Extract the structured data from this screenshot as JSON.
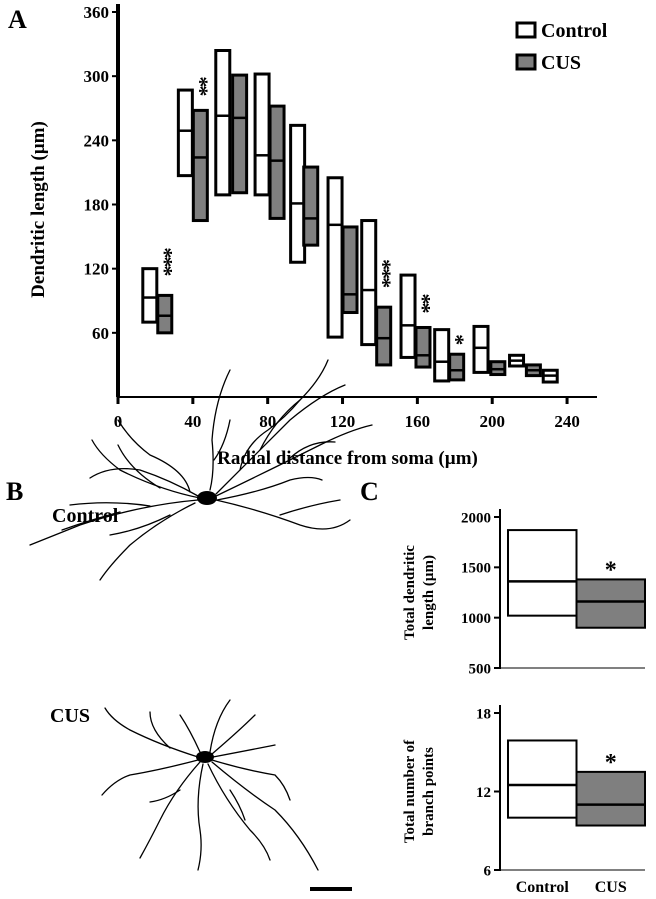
{
  "chart_data": [
    {
      "type": "box",
      "panel": "A",
      "xlabel": "Radial distance from soma (µm)",
      "ylabel": "Dendritic length (µm)",
      "xlim": [
        0,
        256
      ],
      "xticks": [
        0,
        40,
        80,
        120,
        160,
        200,
        240
      ],
      "ylim": [
        0,
        360
      ],
      "yticks": [
        60,
        120,
        180,
        240,
        300,
        360
      ],
      "legend": "upper right",
      "series": [
        {
          "name": "Control",
          "color": "#ffffff",
          "x": [
            17,
            36,
            56,
            77,
            96,
            116,
            134,
            155,
            173,
            194,
            213,
            231
          ],
          "min": [
            70,
            207,
            189,
            189,
            126,
            56,
            49,
            37,
            15,
            23,
            29,
            14
          ],
          "median": [
            93,
            249,
            263,
            226,
            181,
            161,
            100,
            67,
            33,
            46,
            34,
            20
          ],
          "max": [
            120,
            287,
            324,
            302,
            254,
            205,
            165,
            114,
            63,
            66,
            39,
            25
          ]
        },
        {
          "name": "CUS",
          "color": "#7f7f7f",
          "x": [
            25,
            44,
            65,
            85,
            103,
            124,
            142,
            163,
            181,
            203,
            222
          ],
          "min": [
            60,
            165,
            191,
            167,
            142,
            79,
            30,
            28,
            16,
            21,
            20
          ],
          "median": [
            76,
            224,
            261,
            221,
            167,
            96,
            55,
            39,
            25,
            26,
            25
          ],
          "max": [
            95,
            268,
            301,
            272,
            215,
            159,
            84,
            65,
            40,
            33,
            30
          ]
        }
      ],
      "annotations": [
        {
          "text": "***",
          "x": 25
        },
        {
          "text": "**",
          "x": 44
        },
        {
          "text": "***",
          "x": 142
        },
        {
          "text": "**",
          "x": 163
        },
        {
          "text": "*",
          "x": 181
        }
      ]
    },
    {
      "type": "box",
      "panel": "C",
      "ylabel": [
        "Total dendritic",
        "length (µm)"
      ],
      "ylim": [
        500,
        2000
      ],
      "yticks": [
        500,
        1000,
        1500,
        2000
      ],
      "categories": [
        null,
        null
      ],
      "colors": [
        "#ffffff",
        "#7f7f7f"
      ],
      "min": [
        1020,
        900
      ],
      "median": [
        1360,
        1160
      ],
      "max": [
        1870,
        1380
      ],
      "annotations": [
        {
          "text": "*",
          "at": 1
        }
      ]
    },
    {
      "type": "box",
      "ylabel": [
        "Total number of",
        "branch points"
      ],
      "ylim": [
        6,
        18
      ],
      "yticks": [
        6,
        12,
        18
      ],
      "categories": [
        "Control",
        "CUS"
      ],
      "colors": [
        "#ffffff",
        "#7f7f7f"
      ],
      "min": [
        10.0,
        9.4
      ],
      "median": [
        12.5,
        11.0
      ],
      "max": [
        15.9,
        13.5
      ],
      "annotations": [
        {
          "text": "*",
          "at": 1
        }
      ]
    }
  ],
  "panel_b": {
    "label": "B",
    "neurons": [
      "Control",
      "CUS"
    ]
  }
}
